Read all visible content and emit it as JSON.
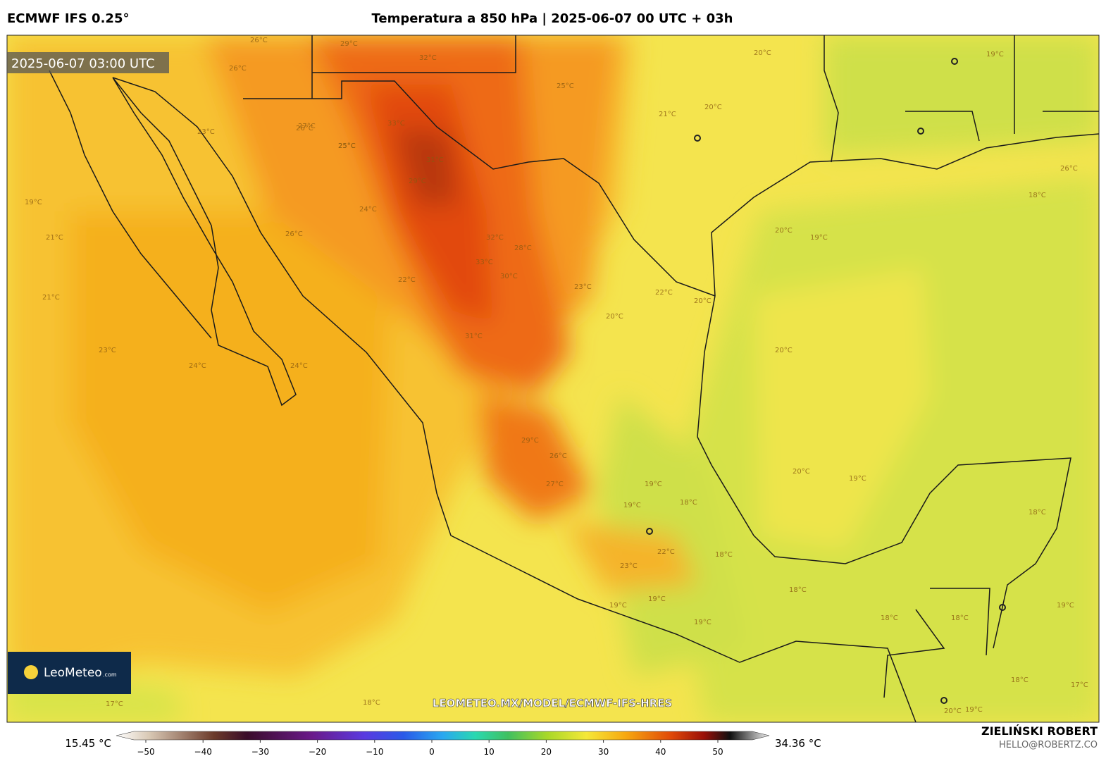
{
  "header": {
    "model": "ECMWF IFS 0.25°",
    "title": "Temperatura a 850 hPa | 2025-06-07 00 UTC + 03h"
  },
  "map": {
    "valid_time": "2025-06-07 03:00 UTC",
    "watermark": "LEOMETEO.MX/MODEL/ECMWF-IFS-HRES",
    "logo": "LeoMeteo",
    "logo_suffix": ".com",
    "contour_labels": [
      "26°C",
      "29°C",
      "32°C",
      "26°C",
      "25°C",
      "20°C",
      "19°C",
      "21°C",
      "26°C",
      "23°C",
      "27°C",
      "25°C",
      "33°C",
      "31°C",
      "29°C",
      "20°C",
      "19°C",
      "21°C",
      "24°C",
      "26°C",
      "33°C",
      "32°C",
      "28°C",
      "30°C",
      "23°C",
      "22°C",
      "20°C",
      "21°C",
      "22°C",
      "20°C",
      "20°C",
      "23°C",
      "24°C",
      "31°C",
      "26°C",
      "25°C",
      "24°C",
      "29°C",
      "26°C",
      "27°C",
      "19°C",
      "19°C",
      "18°C",
      "18°C",
      "23°C",
      "22°C",
      "18°C",
      "19°C",
      "19°C",
      "19°C",
      "18°C",
      "18°C",
      "19°C",
      "19°C",
      "18°C",
      "17°C",
      "18°C",
      "20°C",
      "19°C",
      "18°C",
      "17°C",
      "20°C",
      "19°C",
      "18°C",
      "20°C"
    ]
  },
  "colorbar": {
    "min_label": "15.45 °C",
    "max_label": "34.36 °C",
    "ticks": [
      {
        "value": -50,
        "label": "−50"
      },
      {
        "value": -40,
        "label": "−40"
      },
      {
        "value": -30,
        "label": "−30"
      },
      {
        "value": -20,
        "label": "−20"
      },
      {
        "value": -10,
        "label": "−10"
      },
      0,
      10,
      20,
      30,
      40,
      50
    ]
  },
  "footer": {
    "author": "ZIELIŃSKI ROBERT",
    "email": "HELLO@ROBERTZ.CO"
  }
}
